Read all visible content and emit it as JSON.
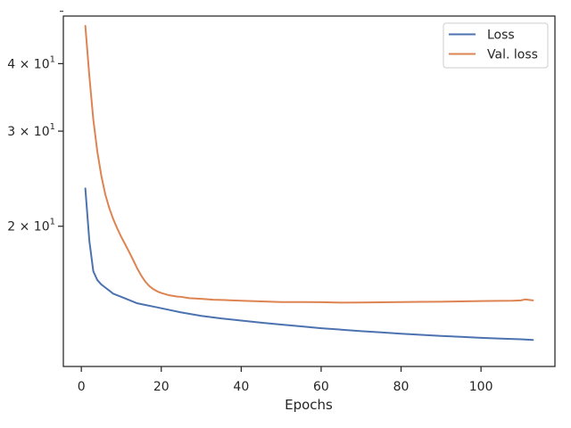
{
  "chart_data": {
    "type": "line",
    "xlabel": "Epochs",
    "ylabel": "",
    "title": "",
    "yscale": "log",
    "xlim": [
      -4.5,
      118.5
    ],
    "ylim": [
      11.0,
      49.0
    ],
    "grid": false,
    "legend_position": "top-right",
    "x_ticks": [
      {
        "value": 0,
        "label": "0"
      },
      {
        "value": 20,
        "label": "20"
      },
      {
        "value": 40,
        "label": "40"
      },
      {
        "value": 60,
        "label": "60"
      },
      {
        "value": 80,
        "label": "80"
      },
      {
        "value": 100,
        "label": "100"
      }
    ],
    "y_ticks": [
      {
        "value": 20,
        "base": "2",
        "label_mid": " × 10",
        "exp": "1"
      },
      {
        "value": 30,
        "base": "3",
        "label_mid": " × 10",
        "exp": "1"
      },
      {
        "value": 40,
        "base": "4",
        "label_mid": " × 10",
        "exp": "1"
      }
    ],
    "y_minor_ticks": [
      50
    ],
    "series": [
      {
        "name": "Loss",
        "color": "#4c72b0",
        "points": [
          [
            1,
            23.5
          ],
          [
            2,
            18.8
          ],
          [
            3,
            16.5
          ],
          [
            4,
            15.9
          ],
          [
            5,
            15.6
          ],
          [
            6,
            15.4
          ],
          [
            7,
            15.2
          ],
          [
            8,
            15.0
          ],
          [
            10,
            14.8
          ],
          [
            12,
            14.6
          ],
          [
            14,
            14.4
          ],
          [
            16,
            14.3
          ],
          [
            18,
            14.2
          ],
          [
            20,
            14.1
          ],
          [
            22,
            14.0
          ],
          [
            25,
            13.85
          ],
          [
            30,
            13.65
          ],
          [
            35,
            13.5
          ],
          [
            40,
            13.38
          ],
          [
            45,
            13.26
          ],
          [
            50,
            13.15
          ],
          [
            55,
            13.05
          ],
          [
            60,
            12.95
          ],
          [
            65,
            12.87
          ],
          [
            70,
            12.79
          ],
          [
            75,
            12.72
          ],
          [
            80,
            12.65
          ],
          [
            85,
            12.59
          ],
          [
            90,
            12.53
          ],
          [
            95,
            12.48
          ],
          [
            100,
            12.43
          ],
          [
            105,
            12.39
          ],
          [
            110,
            12.35
          ],
          [
            113,
            12.32
          ]
        ]
      },
      {
        "name": "Val. loss",
        "color": "#dd8452",
        "points": [
          [
            1,
            47.0
          ],
          [
            2,
            38.0
          ],
          [
            3,
            31.5
          ],
          [
            4,
            27.5
          ],
          [
            5,
            24.8
          ],
          [
            6,
            22.9
          ],
          [
            7,
            21.6
          ],
          [
            8,
            20.6
          ],
          [
            9,
            19.8
          ],
          [
            10,
            19.1
          ],
          [
            11,
            18.5
          ],
          [
            12,
            17.9
          ],
          [
            13,
            17.3
          ],
          [
            14,
            16.7
          ],
          [
            15,
            16.2
          ],
          [
            16,
            15.8
          ],
          [
            17,
            15.5
          ],
          [
            18,
            15.3
          ],
          [
            19,
            15.15
          ],
          [
            20,
            15.05
          ],
          [
            22,
            14.9
          ],
          [
            24,
            14.82
          ],
          [
            25,
            14.8
          ],
          [
            27,
            14.72
          ],
          [
            30,
            14.68
          ],
          [
            33,
            14.62
          ],
          [
            36,
            14.6
          ],
          [
            40,
            14.56
          ],
          [
            45,
            14.52
          ],
          [
            50,
            14.48
          ],
          [
            55,
            14.48
          ],
          [
            60,
            14.47
          ],
          [
            65,
            14.44
          ],
          [
            70,
            14.45
          ],
          [
            75,
            14.46
          ],
          [
            80,
            14.48
          ],
          [
            85,
            14.49
          ],
          [
            90,
            14.5
          ],
          [
            95,
            14.52
          ],
          [
            100,
            14.54
          ],
          [
            105,
            14.55
          ],
          [
            108,
            14.56
          ],
          [
            110,
            14.58
          ],
          [
            111,
            14.64
          ],
          [
            113,
            14.58
          ]
        ]
      }
    ]
  }
}
